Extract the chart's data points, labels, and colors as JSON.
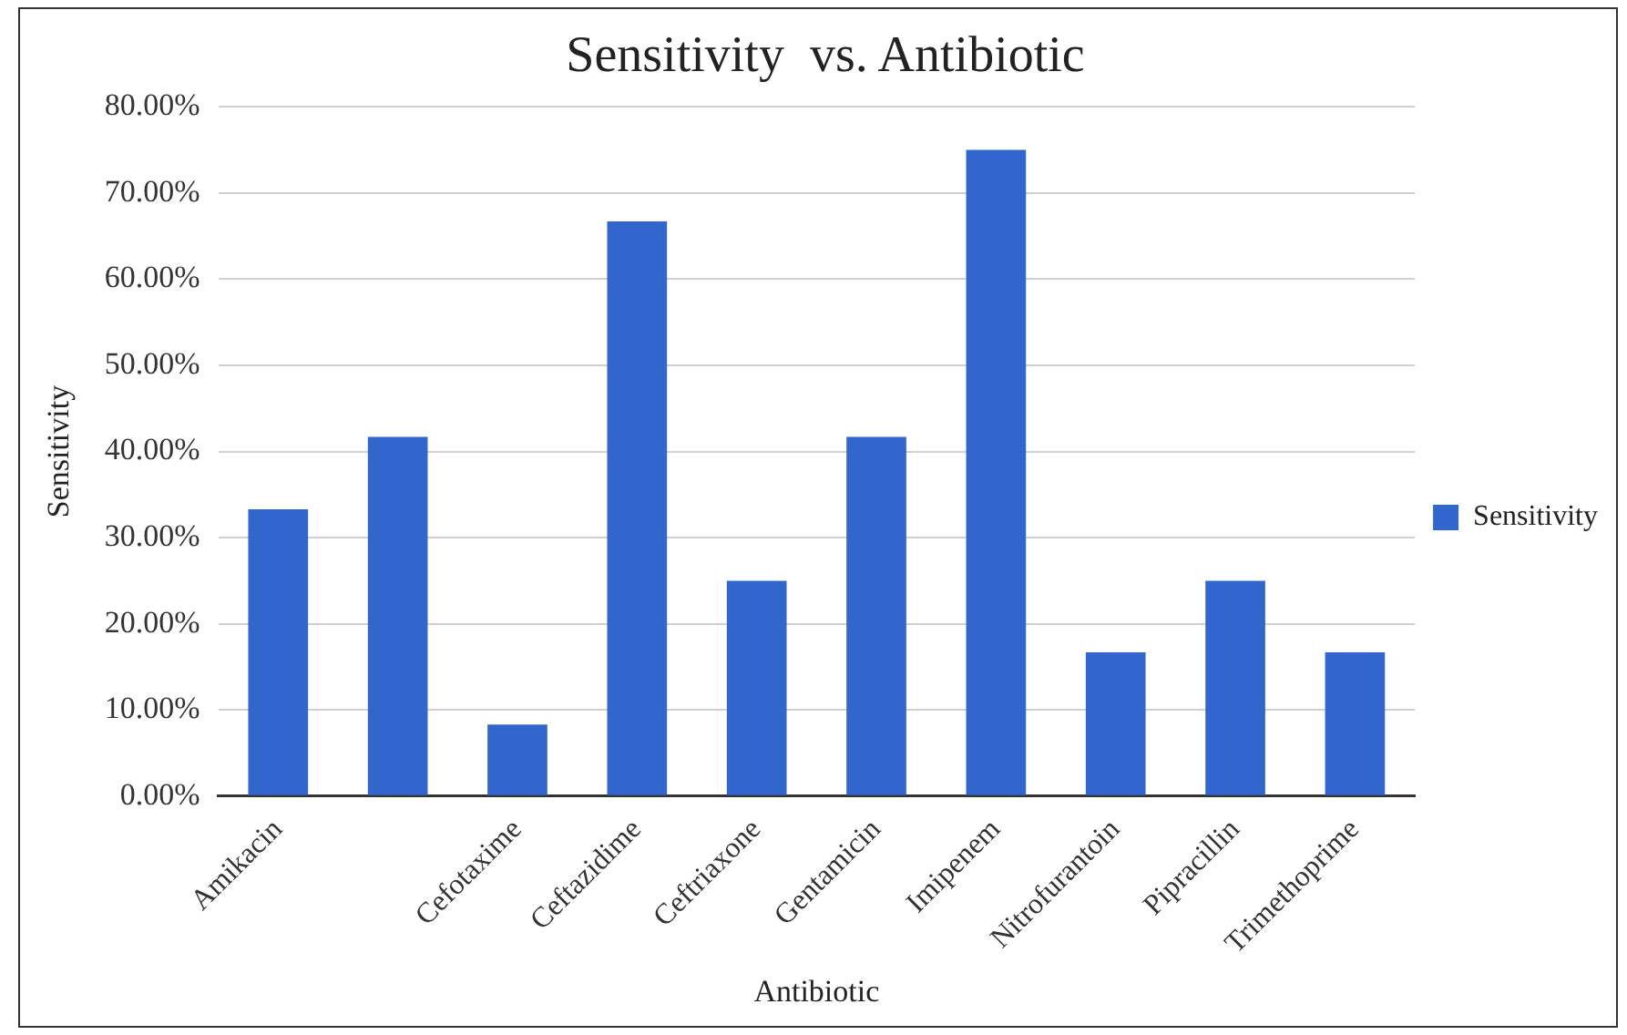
{
  "chart_data": {
    "type": "bar",
    "title": "Sensitivity  vs. Antibiotic",
    "xlabel": "Antibiotic",
    "ylabel": "Sensitivity",
    "categories": [
      "Amikacin",
      null,
      "Cefotaxime",
      "Ceftazidime",
      "Ceftriaxone",
      "Gentamicin",
      "Imipenem",
      "Nitrofurantoin",
      "Pipracillin",
      "Trimethoprime"
    ],
    "series": [
      {
        "name": "Sensitivity",
        "color": "#3366cc",
        "values": [
          33.3,
          41.7,
          8.3,
          66.7,
          25,
          41.7,
          75,
          16.7,
          25,
          16.7
        ]
      }
    ],
    "ylim": [
      0,
      80
    ],
    "yticks": [
      {
        "value": 0,
        "label": "0.00%"
      },
      {
        "value": 10,
        "label": "10.00%"
      },
      {
        "value": 20,
        "label": "20.00%"
      },
      {
        "value": 30,
        "label": "30.00%"
      },
      {
        "value": 40,
        "label": "40.00%"
      },
      {
        "value": 50,
        "label": "50.00%"
      },
      {
        "value": 60,
        "label": "60.00%"
      },
      {
        "value": 70,
        "label": "70.00%"
      },
      {
        "value": 80,
        "label": "80.00%"
      }
    ],
    "grid": "y",
    "legend": "right"
  }
}
